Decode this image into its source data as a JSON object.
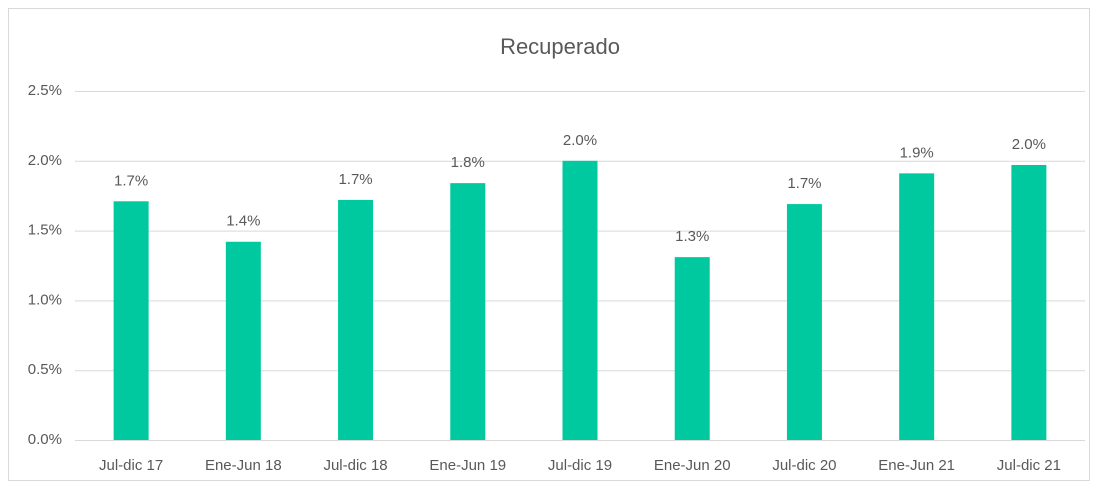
{
  "chart_data": {
    "type": "bar",
    "title": "Recuperado",
    "categories": [
      "Jul-dic 17",
      "Ene-Jun 18",
      "Jul-dic 18",
      "Ene-Jun 19",
      "Jul-dic 19",
      "Ene-Jun 20",
      "Jul-dic 20",
      "Ene-Jun 21",
      "Jul-dic 21"
    ],
    "values": [
      1.71,
      1.42,
      1.72,
      1.84,
      2.0,
      1.31,
      1.69,
      1.91,
      1.97
    ],
    "value_labels": [
      "1.7%",
      "1.4%",
      "1.7%",
      "1.8%",
      "2.0%",
      "1.3%",
      "1.7%",
      "1.9%",
      "2.0%"
    ],
    "color": "#00c9a0",
    "ylim": [
      0,
      2.5
    ],
    "yticks": [
      {
        "value": 0,
        "label": "0.0%"
      },
      {
        "value": 0.5,
        "label": "0.5%"
      },
      {
        "value": 1,
        "label": "1.0%"
      },
      {
        "value": 1.5,
        "label": "1.5%"
      },
      {
        "value": 2,
        "label": "2.0%"
      },
      {
        "value": 2.5,
        "label": "2.5%"
      }
    ],
    "grid": true
  }
}
